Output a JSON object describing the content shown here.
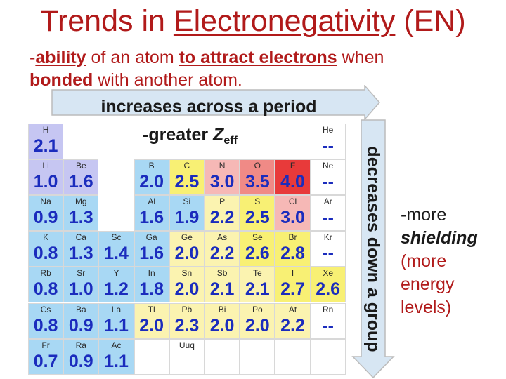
{
  "title": {
    "plain": "Trends in ",
    "underlined": "Electronegativity",
    "suffix": " (EN)"
  },
  "definition": {
    "dash": "-",
    "part1": "ability",
    "part2": " of an atom ",
    "part3": "to attract electrons",
    "part4": " when",
    "part5": "bonded",
    "part6": " with another atom."
  },
  "arrow_right": {
    "label": "increases across a period"
  },
  "zeff": {
    "prefix": "-greater ",
    "symbol": "Z",
    "sub": "eff"
  },
  "arrow_down": {
    "label": "decreases down a group"
  },
  "side_note": {
    "line1": "-more",
    "line2": "shielding",
    "line3": "(more energy levels)"
  },
  "colors": {
    "title": "#b11a1a",
    "value_text": "#1b2cbd",
    "arrow_fill": "#d7e6f3",
    "arrow_stroke": "#c4c4c4"
  },
  "periodic_table": [
    {
      "symbol": "H",
      "value": "2.1",
      "col": 0,
      "row": 0,
      "color": "#c6c6f2"
    },
    {
      "symbol": "He",
      "value": "--",
      "col": 8,
      "row": 0,
      "color": "#ffffff"
    },
    {
      "symbol": "Li",
      "value": "1.0",
      "col": 0,
      "row": 1,
      "color": "#c6c6f2"
    },
    {
      "symbol": "Be",
      "value": "1.6",
      "col": 1,
      "row": 1,
      "color": "#c6c6f2"
    },
    {
      "symbol": "B",
      "value": "2.0",
      "col": 3,
      "row": 1,
      "color": "#a8d8f4"
    },
    {
      "symbol": "C",
      "value": "2.5",
      "col": 4,
      "row": 1,
      "color": "#f8f074"
    },
    {
      "symbol": "N",
      "value": "3.0",
      "col": 5,
      "row": 1,
      "color": "#f6b8b6"
    },
    {
      "symbol": "O",
      "value": "3.5",
      "col": 6,
      "row": 1,
      "color": "#f08a86"
    },
    {
      "symbol": "F",
      "value": "4.0",
      "col": 7,
      "row": 1,
      "color": "#e83a3a"
    },
    {
      "symbol": "Ne",
      "value": "--",
      "col": 8,
      "row": 1,
      "color": "#ffffff"
    },
    {
      "symbol": "Na",
      "value": "0.9",
      "col": 0,
      "row": 2,
      "color": "#a8d8f4"
    },
    {
      "symbol": "Mg",
      "value": "1.3",
      "col": 1,
      "row": 2,
      "color": "#a8d8f4"
    },
    {
      "symbol": "Al",
      "value": "1.6",
      "col": 3,
      "row": 2,
      "color": "#a8d8f4"
    },
    {
      "symbol": "Si",
      "value": "1.9",
      "col": 4,
      "row": 2,
      "color": "#a8d8f4"
    },
    {
      "symbol": "P",
      "value": "2.2",
      "col": 5,
      "row": 2,
      "color": "#fbf3b0"
    },
    {
      "symbol": "S",
      "value": "2.5",
      "col": 6,
      "row": 2,
      "color": "#f8f074"
    },
    {
      "symbol": "Cl",
      "value": "3.0",
      "col": 7,
      "row": 2,
      "color": "#f6b8b6"
    },
    {
      "symbol": "Ar",
      "value": "--",
      "col": 8,
      "row": 2,
      "color": "#ffffff"
    },
    {
      "symbol": "K",
      "value": "0.8",
      "col": 0,
      "row": 3,
      "color": "#a8d8f4"
    },
    {
      "symbol": "Ca",
      "value": "1.3",
      "col": 1,
      "row": 3,
      "color": "#a8d8f4"
    },
    {
      "symbol": "Sc",
      "value": "1.4",
      "col": 2,
      "row": 3,
      "color": "#a8d8f4"
    },
    {
      "symbol": "Ga",
      "value": "1.6",
      "col": 3,
      "row": 3,
      "color": "#a8d8f4"
    },
    {
      "symbol": "Ge",
      "value": "2.0",
      "col": 4,
      "row": 3,
      "color": "#fbf3b0"
    },
    {
      "symbol": "As",
      "value": "2.2",
      "col": 5,
      "row": 3,
      "color": "#fbf3b0"
    },
    {
      "symbol": "Se",
      "value": "2.6",
      "col": 6,
      "row": 3,
      "color": "#f8f074"
    },
    {
      "symbol": "Br",
      "value": "2.8",
      "col": 7,
      "row": 3,
      "color": "#f8f074"
    },
    {
      "symbol": "Kr",
      "value": "--",
      "col": 8,
      "row": 3,
      "color": "#ffffff"
    },
    {
      "symbol": "Rb",
      "value": "0.8",
      "col": 0,
      "row": 4,
      "color": "#a8d8f4"
    },
    {
      "symbol": "Sr",
      "value": "1.0",
      "col": 1,
      "row": 4,
      "color": "#a8d8f4"
    },
    {
      "symbol": "Y",
      "value": "1.2",
      "col": 2,
      "row": 4,
      "color": "#a8d8f4"
    },
    {
      "symbol": "In",
      "value": "1.8",
      "col": 3,
      "row": 4,
      "color": "#a8d8f4"
    },
    {
      "symbol": "Sn",
      "value": "2.0",
      "col": 4,
      "row": 4,
      "color": "#fbf3b0"
    },
    {
      "symbol": "Sb",
      "value": "2.1",
      "col": 5,
      "row": 4,
      "color": "#fbf3b0"
    },
    {
      "symbol": "Te",
      "value": "2.1",
      "col": 6,
      "row": 4,
      "color": "#fbf3b0"
    },
    {
      "symbol": "I",
      "value": "2.7",
      "col": 7,
      "row": 4,
      "color": "#f8f074"
    },
    {
      "symbol": "Xe",
      "value": "2.6",
      "col": 8,
      "row": 4,
      "color": "#f8f074"
    },
    {
      "symbol": "Cs",
      "value": "0.8",
      "col": 0,
      "row": 5,
      "color": "#a8d8f4"
    },
    {
      "symbol": "Ba",
      "value": "0.9",
      "col": 1,
      "row": 5,
      "color": "#a8d8f4"
    },
    {
      "symbol": "La",
      "value": "1.1",
      "col": 2,
      "row": 5,
      "color": "#a8d8f4"
    },
    {
      "symbol": "Tl",
      "value": "2.0",
      "col": 3,
      "row": 5,
      "color": "#fbf3b0"
    },
    {
      "symbol": "Pb",
      "value": "2.3",
      "col": 4,
      "row": 5,
      "color": "#fbf3b0"
    },
    {
      "symbol": "Bi",
      "value": "2.0",
      "col": 5,
      "row": 5,
      "color": "#fbf3b0"
    },
    {
      "symbol": "Po",
      "value": "2.0",
      "col": 6,
      "row": 5,
      "color": "#fbf3b0"
    },
    {
      "symbol": "At",
      "value": "2.2",
      "col": 7,
      "row": 5,
      "color": "#fbf3b0"
    },
    {
      "symbol": "Rn",
      "value": "--",
      "col": 8,
      "row": 5,
      "color": "#ffffff"
    },
    {
      "symbol": "Fr",
      "value": "0.7",
      "col": 0,
      "row": 6,
      "color": "#a8d8f4"
    },
    {
      "symbol": "Ra",
      "value": "0.9",
      "col": 1,
      "row": 6,
      "color": "#a8d8f4"
    },
    {
      "symbol": "Ac",
      "value": "1.1",
      "col": 2,
      "row": 6,
      "color": "#a8d8f4"
    },
    {
      "symbol": "Uuq",
      "value": "",
      "col": 4,
      "row": 6,
      "color": "#ffffff"
    }
  ]
}
